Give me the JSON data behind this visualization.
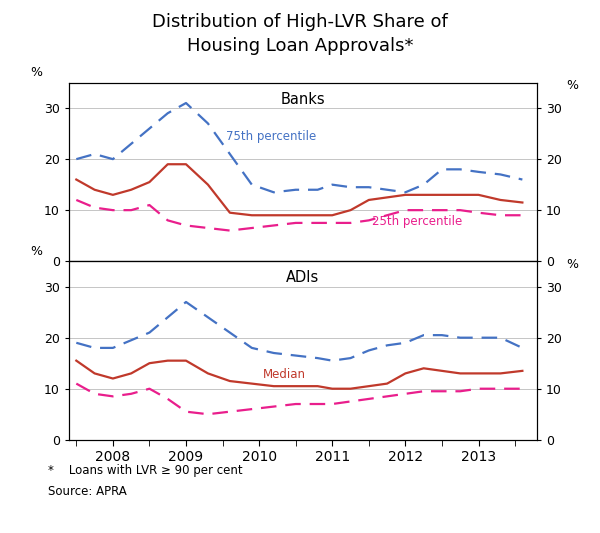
{
  "title": "Distribution of High-LVR Share of\nHousing Loan Approvals*",
  "title_fontsize": 13,
  "footnote": "*    Loans with LVR ≥ 90 per cent",
  "source": "Source: APRA",
  "ylim": [
    0,
    35
  ],
  "yticks": [
    0,
    10,
    20,
    30
  ],
  "xtick_positions": [
    2008,
    2009,
    2010,
    2011,
    2012,
    2013
  ],
  "xlim": [
    2007.4,
    2013.8
  ],
  "banks": {
    "label": "Banks",
    "p75": {
      "x": [
        2007.5,
        2007.75,
        2008.0,
        2008.25,
        2008.5,
        2008.75,
        2009.0,
        2009.3,
        2009.6,
        2009.9,
        2010.2,
        2010.5,
        2010.8,
        2011.0,
        2011.25,
        2011.5,
        2011.75,
        2012.0,
        2012.25,
        2012.5,
        2012.75,
        2013.0,
        2013.3,
        2013.6
      ],
      "y": [
        20,
        21,
        20,
        23,
        26,
        29,
        31,
        27,
        21,
        15,
        13.5,
        14,
        14,
        15,
        14.5,
        14.5,
        14,
        13.5,
        15,
        18,
        18,
        17.5,
        17,
        16
      ],
      "color": "#4472C4",
      "linestyle": "--",
      "label": "75th percentile"
    },
    "median": {
      "x": [
        2007.5,
        2007.75,
        2008.0,
        2008.25,
        2008.5,
        2008.75,
        2009.0,
        2009.3,
        2009.6,
        2009.9,
        2010.2,
        2010.5,
        2010.8,
        2011.0,
        2011.25,
        2011.5,
        2011.75,
        2012.0,
        2012.25,
        2012.5,
        2012.75,
        2013.0,
        2013.3,
        2013.6
      ],
      "y": [
        16,
        14,
        13,
        14,
        15.5,
        19,
        19,
        15,
        9.5,
        9,
        9,
        9,
        9,
        9,
        10,
        12,
        12.5,
        13,
        13,
        13,
        13,
        13,
        12,
        11.5
      ],
      "color": "#C0392B",
      "linestyle": "-",
      "label": "Median"
    },
    "p25": {
      "x": [
        2007.5,
        2007.75,
        2008.0,
        2008.25,
        2008.5,
        2008.75,
        2009.0,
        2009.3,
        2009.6,
        2009.9,
        2010.2,
        2010.5,
        2010.8,
        2011.0,
        2011.25,
        2011.5,
        2011.75,
        2012.0,
        2012.25,
        2012.5,
        2012.75,
        2013.0,
        2013.3,
        2013.6
      ],
      "y": [
        12,
        10.5,
        10,
        10,
        11,
        8,
        7,
        6.5,
        6,
        6.5,
        7,
        7.5,
        7.5,
        7.5,
        7.5,
        8,
        9,
        10,
        10,
        10,
        10,
        9.5,
        9,
        9
      ],
      "color": "#E91E8C",
      "linestyle": "--",
      "label": "25th percentile"
    }
  },
  "adis": {
    "label": "ADIs",
    "p75": {
      "x": [
        2007.5,
        2007.75,
        2008.0,
        2008.25,
        2008.5,
        2008.75,
        2009.0,
        2009.3,
        2009.6,
        2009.9,
        2010.2,
        2010.5,
        2010.8,
        2011.0,
        2011.25,
        2011.5,
        2011.75,
        2012.0,
        2012.25,
        2012.5,
        2012.75,
        2013.0,
        2013.3,
        2013.6
      ],
      "y": [
        19,
        18,
        18,
        19.5,
        21,
        24,
        27,
        24,
        21,
        18,
        17,
        16.5,
        16,
        15.5,
        16,
        17.5,
        18.5,
        19,
        20.5,
        20.5,
        20,
        20,
        20,
        18
      ],
      "color": "#4472C4",
      "linestyle": "--"
    },
    "median": {
      "x": [
        2007.5,
        2007.75,
        2008.0,
        2008.25,
        2008.5,
        2008.75,
        2009.0,
        2009.3,
        2009.6,
        2009.9,
        2010.2,
        2010.5,
        2010.8,
        2011.0,
        2011.25,
        2011.5,
        2011.75,
        2012.0,
        2012.25,
        2012.5,
        2012.75,
        2013.0,
        2013.3,
        2013.6
      ],
      "y": [
        15.5,
        13,
        12,
        13,
        15,
        15.5,
        15.5,
        13,
        11.5,
        11,
        10.5,
        10.5,
        10.5,
        10,
        10,
        10.5,
        11,
        13,
        14,
        13.5,
        13,
        13,
        13,
        13.5
      ],
      "color": "#C0392B",
      "linestyle": "-",
      "label": "Median"
    },
    "p25": {
      "x": [
        2007.5,
        2007.75,
        2008.0,
        2008.25,
        2008.5,
        2008.75,
        2009.0,
        2009.3,
        2009.6,
        2009.9,
        2010.2,
        2010.5,
        2010.8,
        2011.0,
        2011.25,
        2011.5,
        2011.75,
        2012.0,
        2012.25,
        2012.5,
        2012.75,
        2013.0,
        2013.3,
        2013.6
      ],
      "y": [
        11,
        9,
        8.5,
        9,
        10,
        8,
        5.5,
        5,
        5.5,
        6,
        6.5,
        7,
        7,
        7,
        7.5,
        8,
        8.5,
        9,
        9.5,
        9.5,
        9.5,
        10,
        10,
        10
      ],
      "color": "#E91E8C",
      "linestyle": "--"
    }
  },
  "bg_color": "#FFFFFF",
  "panel_border_color": "#000000",
  "grid_color": "#BBBBBB"
}
